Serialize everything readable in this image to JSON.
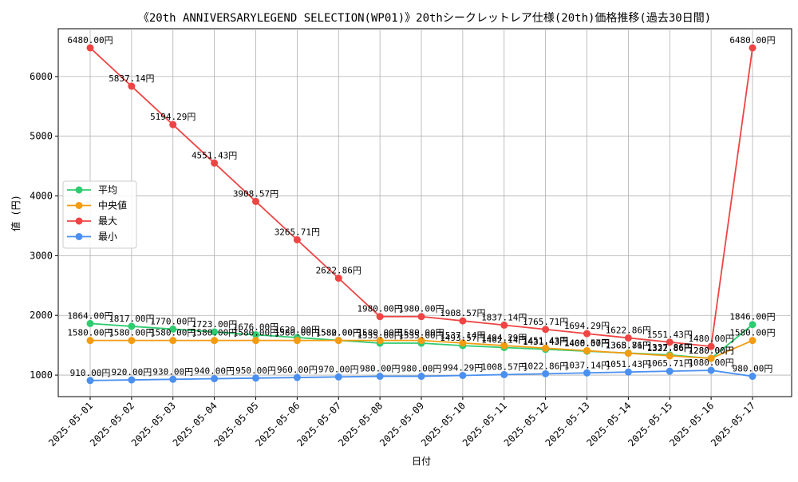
{
  "chart_data": {
    "type": "line",
    "title": "《20th ANNIVERSARYLEGEND SELECTION(WP01)》20thシークレットレア仕様(20th)価格推移(過去30日間)",
    "xlabel": "日付",
    "ylabel": "値 (円)",
    "unit_suffix": "円",
    "ylim": [
      640,
      6800
    ],
    "yticks": [
      1000,
      2000,
      3000,
      4000,
      5000,
      6000
    ],
    "grid": true,
    "legend_position": "center-left",
    "categories": [
      "2025-05-01",
      "2025-05-02",
      "2025-05-03",
      "2025-05-04",
      "2025-05-05",
      "2025-05-06",
      "2025-05-07",
      "2025-05-08",
      "2025-05-09",
      "2025-05-10",
      "2025-05-11",
      "2025-05-12",
      "2025-05-13",
      "2025-05-14",
      "2025-05-15",
      "2025-05-16",
      "2025-05-17"
    ],
    "series": [
      {
        "name": "平均",
        "color": "#2ecc71",
        "values": [
          1864.0,
          1817.0,
          1770.0,
          1723.0,
          1676.0,
          1629.0,
          1582.0,
          1535.0,
          1535.0,
          1493.57,
          1462.14,
          1431.43,
          1400.0,
          1368.86,
          1337.86,
          1280.0,
          1846.0
        ]
      },
      {
        "name": "中央値",
        "color": "#f39c12",
        "values": [
          1580.0,
          1580.0,
          1580.0,
          1580.0,
          1580.0,
          1580.0,
          1580.0,
          1580.0,
          1580.0,
          1537.14,
          1494.29,
          1451.43,
          1408.57,
          1365.71,
          1322.86,
          1280.0,
          1580.0
        ]
      },
      {
        "name": "最大",
        "color": "#ef4444",
        "values": [
          6480.0,
          5837.14,
          5194.29,
          4551.43,
          3908.57,
          3265.71,
          2622.86,
          1980.0,
          1980.0,
          1908.57,
          1837.14,
          1765.71,
          1694.29,
          1622.86,
          1551.43,
          1480.0,
          6480.0
        ]
      },
      {
        "name": "最小",
        "color": "#4a90f0",
        "values": [
          910.0,
          920.0,
          930.0,
          940.0,
          950.0,
          960.0,
          970.0,
          980.0,
          980.0,
          994.29,
          1008.57,
          1022.86,
          1037.14,
          1051.43,
          1065.71,
          1080.0,
          980.0
        ]
      }
    ]
  }
}
